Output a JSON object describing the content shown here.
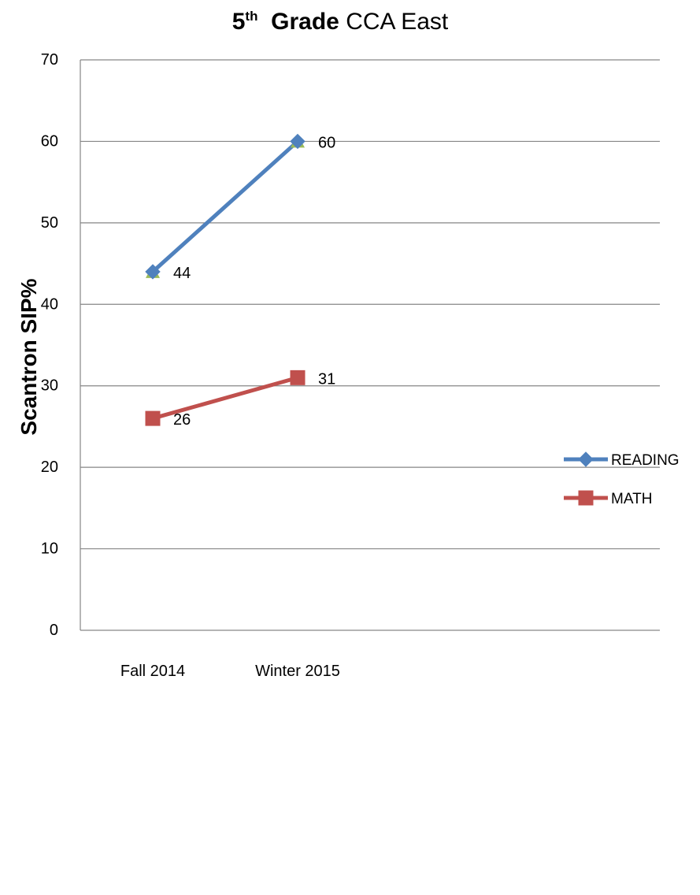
{
  "title": {
    "number": "5",
    "superscript": "th",
    "grade_word": "Grade",
    "rest": "CCA East"
  },
  "chart_data": {
    "type": "line",
    "title": "5th Grade CCA East",
    "xlabel": "",
    "ylabel": "Scantron SIP%",
    "categories": [
      "Fall 2014",
      "Winter 2015"
    ],
    "ylim": [
      0,
      70
    ],
    "yticks": [
      0,
      10,
      20,
      30,
      40,
      50,
      60,
      70
    ],
    "grid": true,
    "legend_position": "right",
    "series": [
      {
        "name": "READING",
        "values": [
          44,
          60
        ],
        "color": "#4F81BD",
        "marker": "diamond"
      },
      {
        "name": "MATH",
        "values": [
          26,
          31
        ],
        "color": "#C0504D",
        "marker": "square"
      }
    ],
    "data_labels": true
  }
}
